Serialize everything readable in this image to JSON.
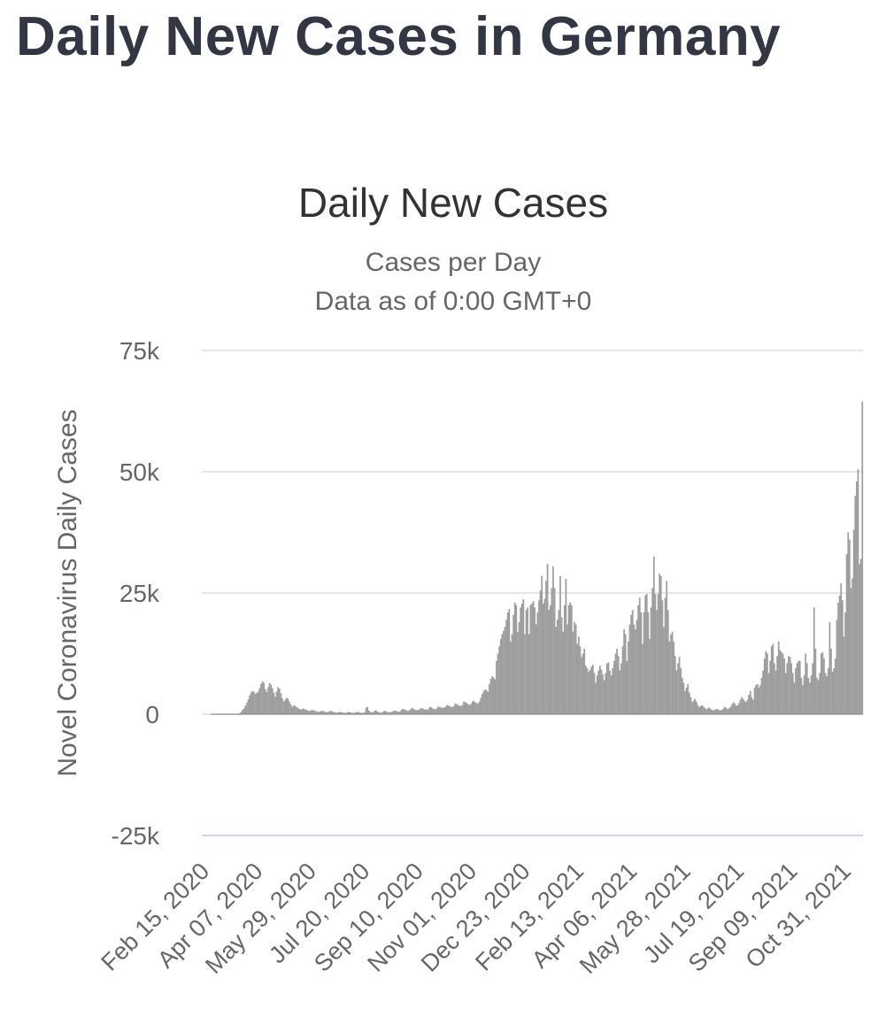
{
  "page": {
    "title": "Daily New Cases in Germany"
  },
  "colors": {
    "bar": "#9e9e9e",
    "grid": "#e6e6e6",
    "bottom_axis": "#ccd6eb",
    "text": "#333333",
    "muted": "#666666"
  },
  "chart_data": {
    "type": "bar",
    "title": "Daily New Cases",
    "subtitle_line1": "Cases per Day",
    "subtitle_line2": "Data as of 0:00 GMT+0",
    "xlabel": "",
    "ylabel": "Novel Coronavirus Daily Cases",
    "ylim": [
      -25000,
      75000
    ],
    "yticks": [
      75000,
      50000,
      25000,
      0,
      -25000
    ],
    "ytick_labels": [
      "75k",
      "50k",
      "25k",
      "0",
      "-25k"
    ],
    "date_start": "2020-02-15",
    "date_end": "2021-11-16",
    "xtick_labels": [
      "Feb 15, 2020",
      "Apr 07, 2020",
      "May 29, 2020",
      "Jul 20, 2020",
      "Sep 10, 2020",
      "Nov 01, 2020",
      "Dec 23, 2020",
      "Feb 13, 2021",
      "Apr 06, 2021",
      "May 28, 2021",
      "Jul 19, 2021",
      "Sep 09, 2021",
      "Oct 31, 2021"
    ],
    "series": [
      {
        "name": "Daily Cases",
        "values": [
          0,
          0,
          0,
          0,
          0,
          0,
          0,
          0,
          0,
          0,
          0,
          0,
          0,
          0,
          0,
          0,
          0,
          0,
          0,
          0,
          200,
          500,
          900,
          1200,
          1800,
          2400,
          3100,
          3900,
          4500,
          4800,
          4600,
          4200,
          4400,
          4700,
          5400,
          6200,
          6800,
          6500,
          5200,
          4600,
          5600,
          6400,
          6100,
          5400,
          4400,
          3600,
          4700,
          5600,
          5300,
          4300,
          3300,
          2600,
          3000,
          3400,
          3200,
          2600,
          2000,
          1500,
          1800,
          1700,
          1500,
          1300,
          1100,
          900,
          1100,
          1200,
          1000,
          900,
          800,
          700,
          800,
          900,
          800,
          700,
          600,
          500,
          500,
          600,
          700,
          600,
          500,
          500,
          400,
          600,
          700,
          600,
          500,
          400,
          300,
          400,
          500,
          400,
          400,
          300,
          300,
          300,
          400,
          500,
          400,
          300,
          300,
          300,
          400,
          500,
          400,
          300,
          300,
          300,
          400,
          1300,
          1500,
          800,
          500,
          400,
          400,
          700,
          800,
          600,
          400,
          400,
          300,
          500,
          700,
          600,
          500,
          400,
          400,
          500,
          600,
          800,
          700,
          600,
          500,
          600,
          900,
          1100,
          1000,
          900,
          700,
          700,
          900,
          1200,
          1300,
          1000,
          900,
          800,
          900,
          1100,
          1300,
          1200,
          1000,
          1000,
          900,
          1100,
          1500,
          1400,
          1200,
          1100,
          1000,
          1200,
          1600,
          1500,
          1400,
          1300,
          1400,
          1500,
          1900,
          1800,
          1700,
          1500,
          1500,
          1700,
          2200,
          2100,
          1900,
          1700,
          1700,
          1900,
          2600,
          2500,
          2300,
          2100,
          1900,
          2100,
          2600,
          2800,
          2500,
          2300,
          2200,
          2600,
          3400,
          4200,
          4800,
          5100,
          5000,
          4600,
          6200,
          7300,
          7800,
          7600,
          7200,
          11000,
          12500,
          14000,
          15500,
          16500,
          17200,
          18000,
          19500,
          21000,
          21700,
          15000,
          16500,
          20500,
          23000,
          22500,
          17000,
          19000,
          22000,
          22800,
          23700,
          16500,
          21500,
          22000,
          16500,
          22500,
          22800,
          23300,
          22000,
          18500,
          21000,
          23500,
          25500,
          28500,
          22800,
          23800,
          27500,
          31000,
          21500,
          22500,
          26000,
          30500,
          26000,
          18000,
          19500,
          21500,
          28500,
          20000,
          17000,
          22500,
          27900,
          18500,
          22500,
          23100,
          22500,
          17000,
          19000,
          18500,
          14500,
          16000,
          14000,
          11800,
          12500,
          13500,
          10000,
          9500,
          8800,
          9200,
          9800,
          10200,
          8500,
          6500,
          8000,
          9000,
          10000,
          9200,
          8200,
          7000,
          8500,
          10500,
          10700,
          9000,
          8000,
          9500,
          11000,
          12500,
          13500,
          12000,
          9000,
          10500,
          14000,
          17500,
          16500,
          11000,
          15000,
          18500,
          20500,
          21500,
          18500,
          17500,
          19500,
          22500,
          24000,
          21000,
          14500,
          21000,
          24500,
          24800,
          21000,
          15500,
          22000,
          26000,
          32500,
          24800,
          21500,
          24800,
          29000,
          28500,
          23500,
          18000,
          24000,
          27500,
          21500,
          15000,
          16500,
          17000,
          15000,
          12000,
          9000,
          10500,
          11800,
          9500,
          7500,
          6500,
          4800,
          5500,
          6200,
          4500,
          3500,
          2500,
          2800,
          3200,
          2600,
          1900,
          1500,
          1700,
          1900,
          1600,
          1300,
          1000,
          1200,
          1400,
          1100,
          900,
          800,
          900,
          1100,
          1000,
          900,
          800,
          900,
          1200,
          1500,
          1300,
          1100,
          1200,
          1500,
          2000,
          2500,
          2200,
          1800,
          1800,
          2300,
          3000,
          3500,
          3200,
          2700,
          2500,
          3000,
          4000,
          4800,
          3500,
          3000,
          5500,
          6000,
          6200,
          5500,
          6000,
          7500,
          9000,
          11500,
          13000,
          12500,
          8500,
          11000,
          14000,
          14500,
          10500,
          9000,
          12000,
          15000,
          13200,
          12800,
          12500,
          11500,
          8500,
          10500,
          12000,
          11800,
          10500,
          8500,
          6500,
          9500,
          10500,
          11000,
          11000,
          7500,
          6000,
          8000,
          12500,
          10500,
          7500,
          6500,
          8000,
          10500,
          22000,
          13500,
          7500,
          7000,
          8500,
          12500,
          12800,
          11500,
          8500,
          7800,
          9500,
          19000,
          13500,
          8800,
          9500,
          11500,
          19500,
          23000,
          24500,
          27000,
          23500,
          16000,
          21000,
          33000,
          37500,
          36000,
          26000,
          28000,
          38000,
          45000,
          48000,
          50500,
          31000,
          32000,
          64500
        ]
      }
    ]
  }
}
